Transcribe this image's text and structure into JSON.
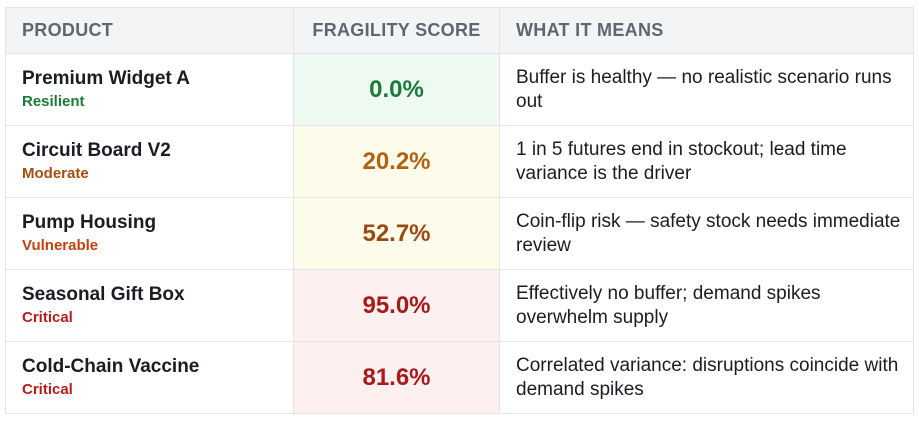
{
  "header": {
    "product": "PRODUCT",
    "score": "FRAGILITY SCORE",
    "meaning": "WHAT IT MEANS"
  },
  "rows": [
    {
      "name": "Premium Widget A",
      "tag": "Resilient",
      "score": "0.0%",
      "meaning": "Buffer is healthy — no realistic scenario runs out",
      "tag_color": "#1e7a3a",
      "score_color": "#1e7a3a",
      "score_bg": "#eefaf1"
    },
    {
      "name": "Circuit Board V2",
      "tag": "Moderate",
      "score": "20.2%",
      "meaning": "1 in 5 futures end in stockout; lead time variance is the driver",
      "tag_color": "#a84d10",
      "score_color": "#b0620f",
      "score_bg": "#fdfbea"
    },
    {
      "name": "Pump Housing",
      "tag": "Vulnerable",
      "score": "52.7%",
      "meaning": "Coin-flip risk — safety stock needs immediate review",
      "tag_color": "#c2410c",
      "score_color": "#9a4a14",
      "score_bg": "#fdfbea"
    },
    {
      "name": "Seasonal Gift Box",
      "tag": "Critical",
      "score": "95.0%",
      "meaning": "Effectively no buffer; demand spikes overwhelm supply",
      "tag_color": "#b91c1c",
      "score_color": "#a61b1b",
      "score_bg": "#fdf0ef"
    },
    {
      "name": "Cold-Chain Vaccine",
      "tag": "Critical",
      "score": "81.6%",
      "meaning": "Correlated variance: disruptions coincide with demand spikes",
      "tag_color": "#b91c1c",
      "score_color": "#a61b1b",
      "score_bg": "#fdf0ef"
    }
  ]
}
